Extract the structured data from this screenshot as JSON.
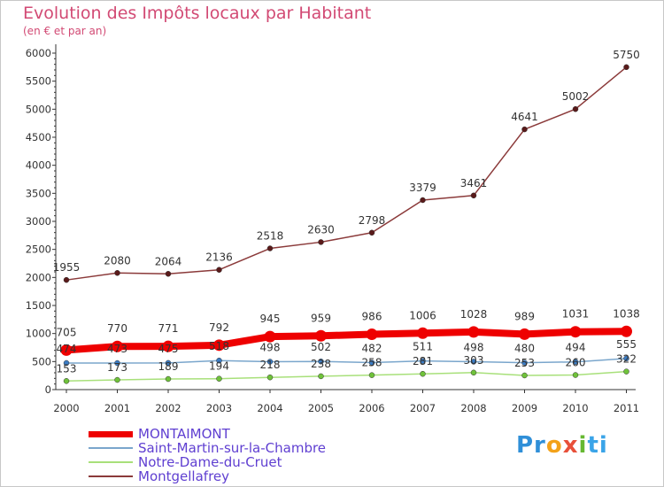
{
  "page": {
    "title": "Evolution des Impôts locaux par Habitant",
    "subtitle": "(en € et par an)"
  },
  "logo": {
    "parts": [
      "Pr",
      "o",
      "x",
      "i",
      "ti"
    ]
  },
  "chart_data": {
    "type": "line",
    "title": "Evolution des Impôts locaux par Habitant",
    "subtitle": "(en € et par an)",
    "xlabel": "",
    "ylabel": "",
    "categories": [
      "2000",
      "2001",
      "2002",
      "2003",
      "2004",
      "2005",
      "2006",
      "2007",
      "2008",
      "2009",
      "2010",
      "2011"
    ],
    "ylim": [
      0,
      6000
    ],
    "yticks": [
      "0",
      "500",
      "1000",
      "1500",
      "2000",
      "2500",
      "3000",
      "3500",
      "4000",
      "4500",
      "5000",
      "5500",
      "6000"
    ],
    "grid": false,
    "legend_position": "bottom-left",
    "series": [
      {
        "name": "MONTAIMONT",
        "color": "#ee0000",
        "marker_color": "#ee0000",
        "labels": [
          "705",
          "770",
          "771",
          "792",
          "945",
          "959",
          "986",
          "1006",
          "1028",
          "989",
          "1031",
          "1038"
        ],
        "values": [
          705,
          770,
          771,
          792,
          945,
          959,
          986,
          1006,
          1028,
          989,
          1031,
          1038
        ],
        "emphasis": true
      },
      {
        "name": "Saint-Martin-sur-la-Chambre",
        "color": "#7aa6cc",
        "marker_color": "#3b7cc4",
        "labels": [
          "474",
          "473",
          "475",
          "518",
          "498",
          "502",
          "482",
          "511",
          "498",
          "480",
          "494",
          "555"
        ],
        "values": [
          474,
          473,
          475,
          518,
          498,
          502,
          482,
          511,
          498,
          480,
          494,
          555
        ],
        "emphasis": false
      },
      {
        "name": "Notre-Dame-du-Cruet",
        "color": "#a8e07a",
        "marker_color": "#6fc23a",
        "labels": [
          "153",
          "173",
          "189",
          "194",
          "218",
          "238",
          "258",
          "281",
          "303",
          "253",
          "260",
          "322"
        ],
        "values": [
          153,
          173,
          189,
          194,
          218,
          238,
          258,
          281,
          303,
          253,
          260,
          322
        ],
        "emphasis": false
      },
      {
        "name": "Montgellafrey",
        "color": "#8b3a3a",
        "marker_color": "#5a1a1a",
        "labels": [
          "1955",
          "2080",
          "2064",
          "2136",
          "2518",
          "2630",
          "2798",
          "3379",
          "3461",
          "4641",
          "5002",
          "5750"
        ],
        "values": [
          1955,
          2080,
          2064,
          2136,
          2518,
          2630,
          2798,
          3379,
          3461,
          4641,
          5002,
          5750
        ],
        "emphasis": false
      }
    ]
  }
}
